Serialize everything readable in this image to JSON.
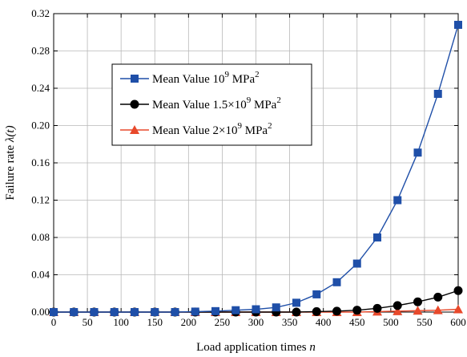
{
  "chart_data": {
    "type": "line",
    "xlabel": "Load application times",
    "xlabel_var": "n",
    "ylabel": "Failure rate",
    "ylabel_var": "λ(t)",
    "xlim": [
      0,
      600
    ],
    "ylim": [
      0,
      0.32
    ],
    "xticks": [
      0,
      50,
      100,
      150,
      200,
      250,
      300,
      350,
      400,
      450,
      500,
      550,
      600
    ],
    "yticks": [
      0,
      0.04,
      0.08,
      0.12,
      0.16,
      0.2,
      0.24,
      0.28,
      0.32
    ],
    "ytick_labels": [
      "0.00",
      "0.04",
      "0.08",
      "0.12",
      "0.16",
      "0.20",
      "0.24",
      "0.28",
      "0.32"
    ],
    "grid": true,
    "legend_position": "upper-left",
    "x": [
      0,
      30,
      60,
      90,
      120,
      150,
      180,
      210,
      240,
      270,
      300,
      330,
      360,
      390,
      420,
      450,
      480,
      510,
      540,
      570,
      600
    ],
    "series": [
      {
        "name_main": "Mean Value 10",
        "name_exp": "9",
        "name_unit": " MPa",
        "name_unit_exp": "2",
        "color": "#1f4fa8",
        "marker": "square",
        "values": [
          0,
          0,
          0,
          0,
          0,
          0,
          0,
          0.0005,
          0.001,
          0.002,
          0.003,
          0.005,
          0.01,
          0.019,
          0.032,
          0.052,
          0.08,
          0.12,
          0.171,
          0.234,
          0.308
        ]
      },
      {
        "name_main": "Mean Value 1.5×10",
        "name_exp": "9",
        "name_unit": " MPa",
        "name_unit_exp": "2",
        "color": "#000000",
        "marker": "circle",
        "values": [
          0,
          0,
          0,
          0,
          0,
          0,
          0,
          0,
          0,
          0,
          0,
          0,
          0,
          0.0005,
          0.001,
          0.002,
          0.004,
          0.007,
          0.011,
          0.016,
          0.023
        ]
      },
      {
        "name_main": "Mean Value 2×10",
        "name_exp": "9",
        "name_unit": " MPa",
        "name_unit_exp": "2",
        "color": "#e8492b",
        "marker": "triangle",
        "values": [
          0,
          0,
          0,
          0,
          0,
          0,
          0,
          0,
          0,
          0,
          0,
          0,
          0,
          0,
          0,
          0,
          0.0005,
          0.001,
          0.0015,
          0.002,
          0.003
        ]
      }
    ]
  }
}
